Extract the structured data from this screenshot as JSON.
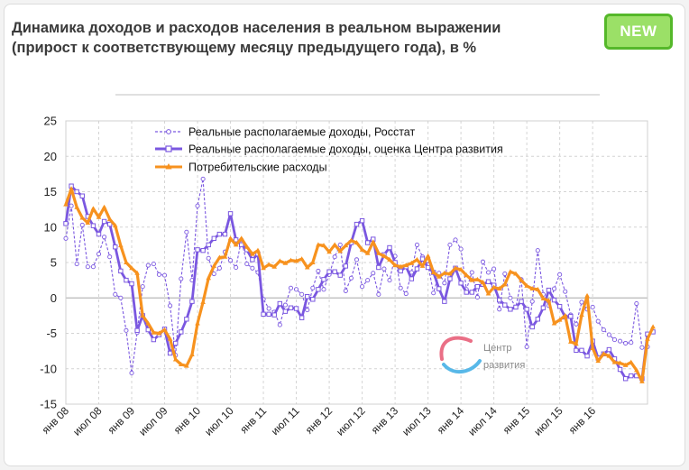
{
  "header": {
    "title_line1": "Динамика доходов и расходов населения в реальном выражении",
    "title_line2": "(прирост к соответствующему месяцу предыдущего года), в %",
    "badge": "NEW"
  },
  "watermark": {
    "line1": "Центр",
    "line2": "развития"
  },
  "colors": {
    "rosstat": "#7a57e0",
    "estimate": "#7a57e0",
    "consumption": "#f7921e"
  },
  "chart_data": {
    "type": "line",
    "title": "Динамика доходов и расходов населения в реальном выражении (прирост к соответствующему месяцу предыдущего года), в %",
    "xlabel": "",
    "ylabel": "",
    "ylim": [
      -15,
      25
    ],
    "yticks": [
      -15,
      -10,
      -5,
      0,
      5,
      10,
      15,
      20,
      25
    ],
    "x_start": "янв 08",
    "x_end": "апр 16",
    "x_tick_labels": [
      "янв 08",
      "июл 08",
      "янв 09",
      "июл 09",
      "янв 10",
      "июл 10",
      "янв 11",
      "июл 11",
      "янв 12",
      "июл 12",
      "янв 13",
      "июл 13",
      "янв 14",
      "июл 14",
      "янв 15",
      "июл 15",
      "янв 16"
    ],
    "grid": true,
    "legend_position": "top-left",
    "series": [
      {
        "name": "Реальные располагаемые доходы, Росстат",
        "style": "dashed-thin",
        "values": [
          8.4,
          13,
          4.8,
          10.3,
          4.4,
          4.4,
          6.2,
          8.6,
          5.8,
          0.5,
          0,
          -4.6,
          -10.6,
          -4.9,
          1.6,
          4.6,
          4.8,
          3.3,
          3.2,
          -1.1,
          -8.1,
          2.7,
          9.3,
          2.5,
          13,
          16.8,
          5.6,
          3.4,
          4.2,
          6.5,
          5.3,
          4.3,
          8.2,
          4.8,
          4.2,
          3.6,
          -0.2,
          -1.5,
          -2,
          -3.8,
          -1,
          1.4,
          1.2,
          0.5,
          -1.7,
          1.4,
          3.8,
          1.2,
          3.3,
          5.8,
          7.5,
          1,
          2.8,
          5.4,
          1.6,
          2.5,
          3.5,
          0.5,
          4.1,
          2.5,
          5.9,
          1.4,
          0.6,
          3.6,
          7.5,
          5.8,
          4.7,
          0.7,
          3.5,
          2.1,
          7.5,
          8.2,
          6.9,
          1.2,
          3.6,
          0.1,
          5.1,
          3.6,
          4.1,
          -1.6,
          3.4,
          0,
          -1.3,
          2.6,
          -6.9,
          -0.5,
          6.7,
          0.5,
          -1.1,
          1.3,
          3.3,
          0.9,
          -2.4,
          -3.7,
          -0.6,
          -1.6,
          -1.3,
          -3.3,
          -4.5,
          -5.2,
          -5.9,
          -6.1,
          -6.4,
          -6.3,
          -0.8,
          -7,
          -6.9
        ]
      },
      {
        "name": "Реальные располагаемые доходы, оценка Центра развития",
        "style": "thick-square",
        "values": [
          10.5,
          15.8,
          15,
          14.4,
          11.5,
          10.2,
          9,
          10.8,
          10.4,
          7.2,
          3.8,
          2.5,
          2,
          -4.6,
          -2.5,
          -4.5,
          -5.9,
          -5.2,
          -4.4,
          -7.8,
          -6.4,
          -4.8,
          -3,
          -0.5,
          6.8,
          6.7,
          7.5,
          8.4,
          9,
          9,
          11.9,
          8.2,
          7.5,
          6.8,
          5.4,
          6.2,
          -2.3,
          -2.3,
          -2.4,
          -0.8,
          -1.9,
          -1.4,
          -1.5,
          -2.8,
          0.2,
          -0.2,
          1.2,
          2.6,
          3.7,
          3.7,
          3.2,
          4.5,
          7.8,
          10.4,
          10.9,
          7.8,
          8.3,
          4.3,
          6.1,
          7.1,
          5,
          3.8,
          4.4,
          2.7,
          4.1,
          5.5,
          4.3,
          3.6,
          1.3,
          -0.5,
          2.7,
          4.2,
          2.1,
          0.8,
          0.8,
          1.6,
          1.9,
          2.3,
          1.8,
          -0.3,
          -1,
          -1.6,
          -1.3,
          -0.5,
          -1.6,
          -4.1,
          -3,
          -1.4,
          1.1,
          -0.3,
          -1.2,
          -2.7,
          -2.6,
          -7.4,
          -7.4,
          -8.2,
          -6.1,
          -8.5,
          -7.9,
          -7.3,
          -8.6,
          -10.1,
          -11.4,
          -11,
          -11,
          -11.4,
          -5.1,
          -4.8
        ]
      },
      {
        "name": "Потребительские расходы",
        "style": "thick-triangle",
        "values": [
          13.2,
          15.4,
          12.8,
          11.3,
          10.6,
          12.6,
          11.4,
          12.8,
          11.1,
          10.2,
          7.4,
          5,
          4.2,
          3.5,
          -2.5,
          -3.6,
          -4.9,
          -5,
          -4.5,
          -5.8,
          -8.7,
          -9.4,
          -9.6,
          -8,
          -3.6,
          -0.6,
          2.8,
          4.5,
          5.7,
          5.8,
          8.4,
          7.5,
          8.4,
          7.2,
          6.2,
          6.7,
          4.2,
          4.7,
          4.4,
          5.2,
          4.9,
          5.3,
          5.2,
          5.5,
          4.3,
          5,
          7.5,
          7.4,
          6.5,
          7.5,
          6.6,
          7.4,
          8.1,
          7.8,
          6.8,
          6.3,
          7.9,
          6.3,
          5.9,
          5.4,
          4.6,
          4.4,
          4.6,
          4.9,
          5.4,
          4.5,
          5.9,
          3.6,
          3,
          3.5,
          3.4,
          4.2,
          4,
          3.2,
          2.5,
          2.6,
          2.2,
          0.6,
          1.5,
          1.3,
          1.9,
          3.7,
          3.4,
          2.5,
          1.7,
          1.3,
          1.2,
          -0.1,
          -0.4,
          -3.6,
          -3.1,
          -2.5,
          -6.2,
          -6.5,
          -2.4,
          0.3,
          -7.1,
          -8.9,
          -7.9,
          -8.2,
          -9.1,
          -9.2,
          -9.5,
          -9.1,
          -10.2,
          -11.8,
          -5.8,
          -4.1
        ]
      }
    ]
  }
}
